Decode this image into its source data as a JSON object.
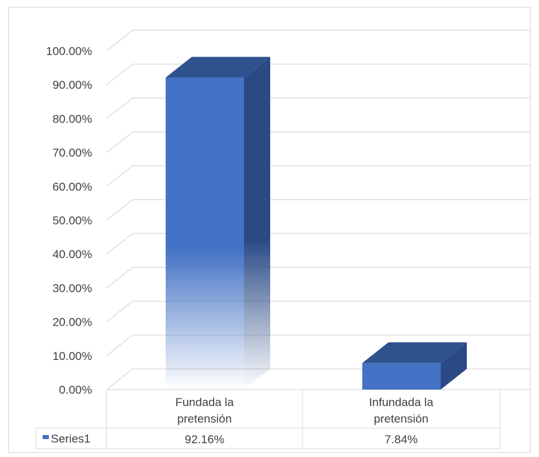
{
  "chart_data": {
    "type": "bar",
    "categories": [
      "Fundada la\npretensión",
      "Infundada la\npretensión"
    ],
    "series": [
      {
        "name": "Series1",
        "values": [
          92.16,
          7.84
        ],
        "value_labels": [
          "92.16%",
          "7.84%"
        ],
        "color": "#4472c4"
      }
    ],
    "y_ticks": [
      "100.00%",
      "90.00%",
      "80.00%",
      "70.00%",
      "60.00%",
      "50.00%",
      "40.00%",
      "30.00%",
      "20.00%",
      "10.00%",
      "0.00%"
    ],
    "ylim": [
      0,
      100
    ],
    "grid": true,
    "legend": "data-table-left",
    "colors": {
      "front": "#4472c4",
      "top": "#2f528f",
      "side": "#2a4a86",
      "grid": "#d9d9d9"
    }
  }
}
